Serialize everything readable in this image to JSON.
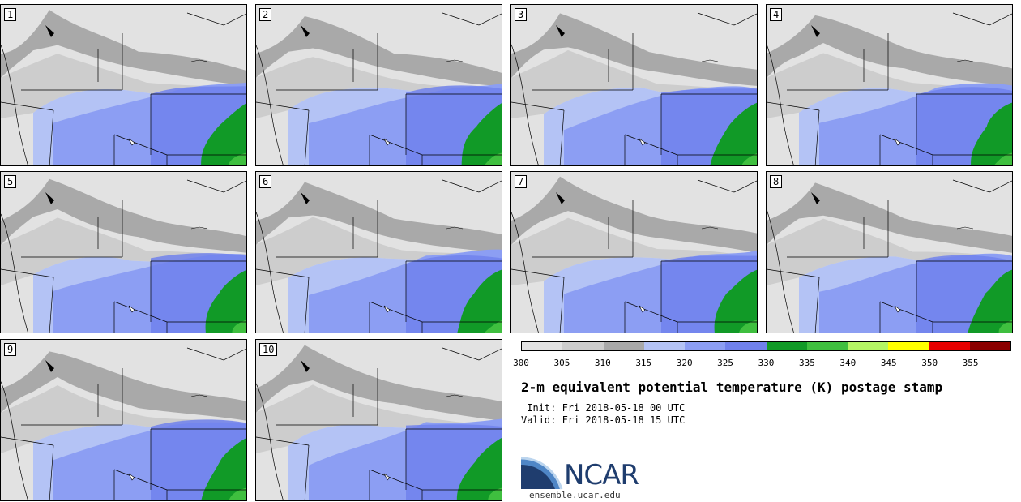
{
  "panels": [
    {
      "label": "1"
    },
    {
      "label": "2"
    },
    {
      "label": "3"
    },
    {
      "label": "4"
    },
    {
      "label": "5"
    },
    {
      "label": "6"
    },
    {
      "label": "7"
    },
    {
      "label": "8"
    },
    {
      "label": "9"
    },
    {
      "label": "10"
    }
  ],
  "colorbar": {
    "ticks": [
      "300",
      "305",
      "310",
      "315",
      "320",
      "325",
      "330",
      "335",
      "340",
      "345",
      "350",
      "355"
    ],
    "colors": [
      "#e2e2e2",
      "#cdcdcd",
      "#a9a9a9",
      "#b4c3f5",
      "#8c9ef3",
      "#7081ec",
      "#119a27",
      "#3fbf3f",
      "#b4f564",
      "#ffff00",
      "#e60000",
      "#8b0000"
    ]
  },
  "title": "2-m equivalent potential temperature (K) postage stamp",
  "init": " Init: Fri 2018-05-18 00 UTC",
  "valid": "Valid: Fri 2018-05-18 15 UTC",
  "logo": {
    "name": "NCAR",
    "url": "ensemble.ucar.edu"
  }
}
